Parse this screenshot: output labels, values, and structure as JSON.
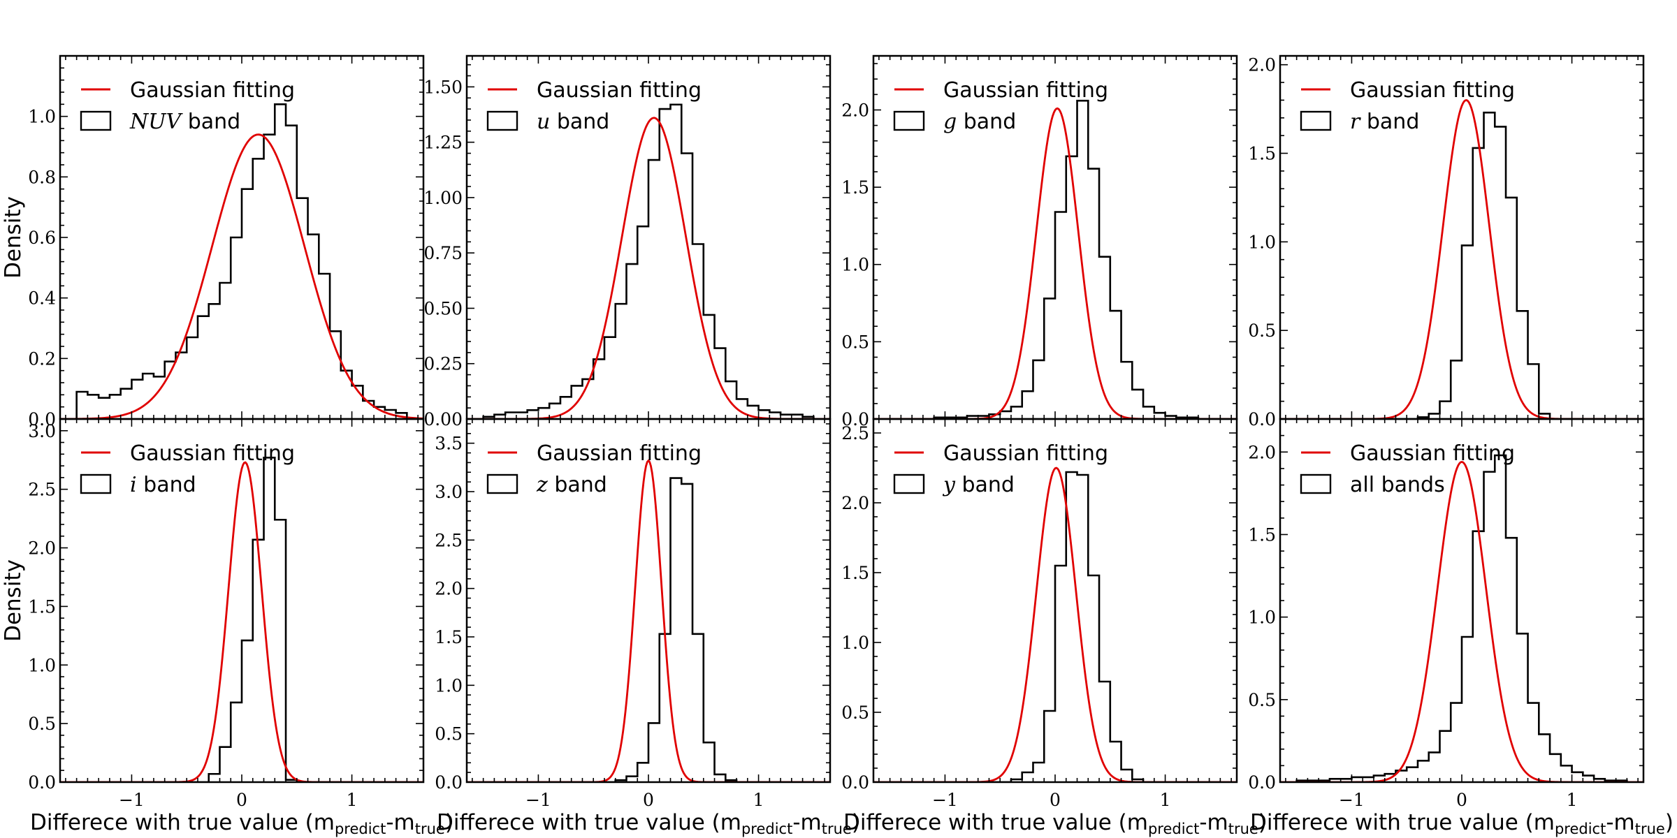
{
  "chart_data": {
    "type": "histogram-grid",
    "rows": 2,
    "cols": 4,
    "x_range": [
      -1.65,
      1.65
    ],
    "x_tick_values": [
      -1,
      0,
      1
    ],
    "x_tick_labels": [
      "−1",
      "0",
      "1"
    ],
    "xlabel_prefix": "Differece with true value (m",
    "xlabel_sub_predict": "predict",
    "xlabel_dash": "-m",
    "xlabel_sub_true": "true",
    "xlabel_suffix": ")",
    "ylabel": "Density",
    "legend_fit_label": "Gaussian fitting",
    "hist_bin_edges": [
      -1.5,
      -1.4,
      -1.3,
      -1.2,
      -1.1,
      -1.0,
      -0.9,
      -0.8,
      -0.7,
      -0.6,
      -0.5,
      -0.4,
      -0.3,
      -0.2,
      -0.1,
      0.0,
      0.1,
      0.2,
      0.3,
      0.4,
      0.5,
      0.6,
      0.7,
      0.8,
      0.9,
      1.0,
      1.1,
      1.2,
      1.3,
      1.4,
      1.5
    ],
    "panels": [
      {
        "band_symbol": "NUV",
        "band_suffix": " band",
        "symbol_italic": true,
        "ylim": [
          0,
          1.2
        ],
        "y_tick_values": [
          0.0,
          0.2,
          0.4,
          0.6,
          0.8,
          1.0
        ],
        "y_tick_labels": [
          "0.0",
          "0.2",
          "0.4",
          "0.6",
          "0.8",
          "1.0"
        ],
        "hist_values": [
          0.09,
          0.08,
          0.07,
          0.08,
          0.1,
          0.13,
          0.15,
          0.14,
          0.19,
          0.22,
          0.27,
          0.34,
          0.38,
          0.45,
          0.6,
          0.76,
          0.86,
          0.94,
          1.04,
          0.97,
          0.73,
          0.61,
          0.48,
          0.29,
          0.16,
          0.11,
          0.06,
          0.04,
          0.03,
          0.02
        ],
        "gauss_mu": 0.15,
        "gauss_sigma": 0.42,
        "gauss_peak": 0.94
      },
      {
        "band_symbol": "u",
        "band_suffix": " band",
        "symbol_italic": true,
        "ylim": [
          0,
          1.64
        ],
        "y_tick_values": [
          0.0,
          0.25,
          0.5,
          0.75,
          1.0,
          1.25,
          1.5
        ],
        "y_tick_labels": [
          "0.00",
          "0.25",
          "0.50",
          "0.75",
          "1.00",
          "1.25",
          "1.50"
        ],
        "hist_values": [
          0.01,
          0.02,
          0.03,
          0.03,
          0.04,
          0.05,
          0.07,
          0.1,
          0.15,
          0.18,
          0.27,
          0.37,
          0.52,
          0.7,
          0.87,
          1.17,
          1.4,
          1.42,
          1.2,
          0.79,
          0.47,
          0.32,
          0.17,
          0.09,
          0.06,
          0.04,
          0.03,
          0.02,
          0.02,
          0.01
        ],
        "gauss_mu": 0.05,
        "gauss_sigma": 0.29,
        "gauss_peak": 1.36
      },
      {
        "band_symbol": "g",
        "band_suffix": " band",
        "symbol_italic": true,
        "ylim": [
          0,
          2.35
        ],
        "y_tick_values": [
          0.0,
          0.5,
          1.0,
          1.5,
          2.0
        ],
        "y_tick_labels": [
          "0.0",
          "0.5",
          "1.0",
          "1.5",
          "2.0"
        ],
        "hist_values": [
          0.0,
          0.0,
          0.0,
          0.0,
          0.01,
          0.01,
          0.01,
          0.02,
          0.02,
          0.03,
          0.05,
          0.08,
          0.18,
          0.38,
          0.78,
          1.34,
          1.7,
          2.06,
          1.62,
          1.05,
          0.7,
          0.37,
          0.19,
          0.08,
          0.04,
          0.02,
          0.01,
          0.01,
          0.0,
          0.0
        ],
        "gauss_mu": 0.02,
        "gauss_sigma": 0.19,
        "gauss_peak": 2.01
      },
      {
        "band_symbol": "r",
        "band_suffix": " band",
        "symbol_italic": true,
        "ylim": [
          0,
          2.05
        ],
        "y_tick_values": [
          0.0,
          0.5,
          1.0,
          1.5,
          2.0
        ],
        "y_tick_labels": [
          "0.0",
          "0.5",
          "1.0",
          "1.5",
          "2.0"
        ],
        "hist_values": [
          0.0,
          0.0,
          0.0,
          0.0,
          0.0,
          0.0,
          0.0,
          0.0,
          0.0,
          0.0,
          0.0,
          0.01,
          0.03,
          0.1,
          0.33,
          0.98,
          1.53,
          1.73,
          1.65,
          1.25,
          0.61,
          0.31,
          0.03,
          0.0,
          0.0,
          0.0,
          0.0,
          0.0,
          0.0,
          0.0
        ],
        "gauss_mu": 0.04,
        "gauss_sigma": 0.21,
        "gauss_peak": 1.8
      },
      {
        "band_symbol": "i",
        "band_suffix": " band",
        "symbol_italic": true,
        "ylim": [
          0,
          3.1
        ],
        "y_tick_values": [
          0.0,
          0.5,
          1.0,
          1.5,
          2.0,
          2.5,
          3.0
        ],
        "y_tick_labels": [
          "0.0",
          "0.5",
          "1.0",
          "1.5",
          "2.0",
          "2.5",
          "3.0"
        ],
        "hist_values": [
          0.0,
          0.0,
          0.0,
          0.0,
          0.0,
          0.0,
          0.0,
          0.0,
          0.0,
          0.0,
          0.0,
          0.0,
          0.07,
          0.3,
          0.68,
          1.21,
          2.07,
          2.77,
          2.24,
          0.02,
          0.0,
          0.0,
          0.0,
          0.0,
          0.0,
          0.0,
          0.0,
          0.0,
          0.0,
          0.0
        ],
        "gauss_mu": 0.03,
        "gauss_sigma": 0.15,
        "gauss_peak": 2.73
      },
      {
        "band_symbol": "z",
        "band_suffix": " band",
        "symbol_italic": true,
        "ylim": [
          0,
          3.75
        ],
        "y_tick_values": [
          0.0,
          0.5,
          1.0,
          1.5,
          2.0,
          2.5,
          3.0,
          3.5
        ],
        "y_tick_labels": [
          "0.0",
          "0.5",
          "1.0",
          "1.5",
          "2.0",
          "2.5",
          "3.0",
          "3.5"
        ],
        "hist_values": [
          0.0,
          0.0,
          0.0,
          0.0,
          0.0,
          0.0,
          0.0,
          0.0,
          0.0,
          0.0,
          0.0,
          0.0,
          0.02,
          0.06,
          0.2,
          0.61,
          1.53,
          3.14,
          3.08,
          1.53,
          0.41,
          0.08,
          0.02,
          0.0,
          0.0,
          0.0,
          0.0,
          0.0,
          0.0,
          0.0
        ],
        "gauss_mu": 0.0,
        "gauss_sigma": 0.12,
        "gauss_peak": 3.32
      },
      {
        "band_symbol": "y",
        "band_suffix": " band",
        "symbol_italic": true,
        "ylim": [
          0,
          2.6
        ],
        "y_tick_values": [
          0.0,
          0.5,
          1.0,
          1.5,
          2.0,
          2.5
        ],
        "y_tick_labels": [
          "0.0",
          "0.5",
          "1.0",
          "1.5",
          "2.0",
          "2.5"
        ],
        "hist_values": [
          0.0,
          0.0,
          0.0,
          0.0,
          0.0,
          0.0,
          0.0,
          0.0,
          0.0,
          0.0,
          0.0,
          0.02,
          0.07,
          0.14,
          0.51,
          1.55,
          2.22,
          2.2,
          1.48,
          0.72,
          0.29,
          0.09,
          0.02,
          0.0,
          0.0,
          0.0,
          0.0,
          0.0,
          0.0,
          0.0
        ],
        "gauss_mu": 0.01,
        "gauss_sigma": 0.18,
        "gauss_peak": 2.25
      },
      {
        "band_symbol": "all bands",
        "band_suffix": "",
        "symbol_italic": false,
        "ylim": [
          0,
          2.2
        ],
        "y_tick_values": [
          0.0,
          0.5,
          1.0,
          1.5,
          2.0
        ],
        "y_tick_labels": [
          "0.0",
          "0.5",
          "1.0",
          "1.5",
          "2.0"
        ],
        "hist_values": [
          0.01,
          0.01,
          0.01,
          0.02,
          0.02,
          0.03,
          0.03,
          0.04,
          0.05,
          0.07,
          0.09,
          0.13,
          0.18,
          0.31,
          0.48,
          0.88,
          1.52,
          1.88,
          1.98,
          1.48,
          0.9,
          0.48,
          0.29,
          0.17,
          0.1,
          0.06,
          0.04,
          0.02,
          0.01,
          0.01
        ],
        "gauss_mu": 0.0,
        "gauss_sigma": 0.22,
        "gauss_peak": 1.94
      }
    ]
  }
}
